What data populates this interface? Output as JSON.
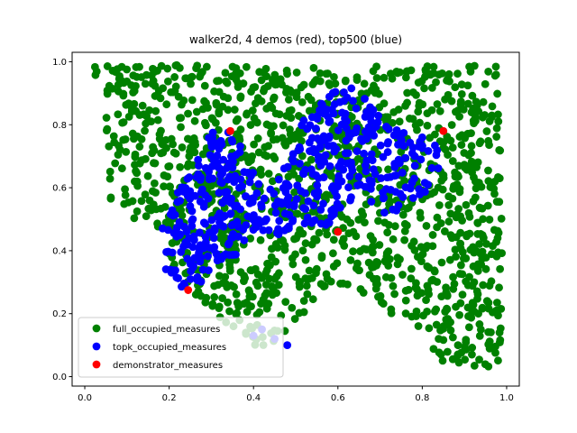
{
  "chart_data": {
    "type": "scatter",
    "title": "walker2d, 4 demos (red), top500 (blue)",
    "xlabel": "",
    "ylabel": "",
    "xlim": [
      -0.03,
      1.03
    ],
    "ylim": [
      -0.03,
      1.03
    ],
    "xticks": [
      "0.0",
      "0.2",
      "0.4",
      "0.6",
      "0.8",
      "1.0"
    ],
    "yticks": [
      "0.0",
      "0.2",
      "0.4",
      "0.6",
      "0.8",
      "1.0"
    ],
    "grid": false,
    "legend": {
      "placement": "lower-left"
    },
    "series": [
      {
        "name": "full_occupied_measures",
        "color": "#008000",
        "generated_count": 1400,
        "region_polygon": [
          [
            0.02,
            0.99
          ],
          [
            0.3,
            0.99
          ],
          [
            0.5,
            0.98
          ],
          [
            0.75,
            0.99
          ],
          [
            0.98,
            0.99
          ],
          [
            0.99,
            0.6
          ],
          [
            0.99,
            0.03
          ],
          [
            0.85,
            0.03
          ],
          [
            0.8,
            0.15
          ],
          [
            0.7,
            0.22
          ],
          [
            0.6,
            0.3
          ],
          [
            0.5,
            0.18
          ],
          [
            0.46,
            0.1
          ],
          [
            0.4,
            0.1
          ],
          [
            0.35,
            0.16
          ],
          [
            0.3,
            0.2
          ],
          [
            0.25,
            0.27
          ],
          [
            0.2,
            0.35
          ],
          [
            0.2,
            0.45
          ],
          [
            0.15,
            0.48
          ],
          [
            0.1,
            0.5
          ],
          [
            0.06,
            0.52
          ],
          [
            0.05,
            0.8
          ],
          [
            0.02,
            0.99
          ]
        ]
      },
      {
        "name": "topk_occupied_measures",
        "color": "#0000ff",
        "generated_count": 500,
        "region_polygon": [
          [
            0.18,
            0.5
          ],
          [
            0.25,
            0.68
          ],
          [
            0.3,
            0.78
          ],
          [
            0.36,
            0.8
          ],
          [
            0.38,
            0.68
          ],
          [
            0.45,
            0.6
          ],
          [
            0.52,
            0.82
          ],
          [
            0.6,
            0.92
          ],
          [
            0.66,
            0.92
          ],
          [
            0.72,
            0.8
          ],
          [
            0.82,
            0.75
          ],
          [
            0.86,
            0.7
          ],
          [
            0.82,
            0.6
          ],
          [
            0.75,
            0.52
          ],
          [
            0.7,
            0.52
          ],
          [
            0.62,
            0.55
          ],
          [
            0.6,
            0.47
          ],
          [
            0.5,
            0.48
          ],
          [
            0.42,
            0.42
          ],
          [
            0.35,
            0.38
          ],
          [
            0.28,
            0.3
          ],
          [
            0.24,
            0.28
          ],
          [
            0.2,
            0.3
          ],
          [
            0.18,
            0.4
          ],
          [
            0.18,
            0.5
          ]
        ],
        "extra_points": [
          [
            0.45,
            0.12
          ],
          [
            0.42,
            0.15
          ],
          [
            0.4,
            0.13
          ],
          [
            0.48,
            0.1
          ]
        ]
      },
      {
        "name": "demonstrator_measures",
        "color": "#ff0000",
        "points": [
          [
            0.345,
            0.78
          ],
          [
            0.6,
            0.46
          ],
          [
            0.85,
            0.78
          ],
          [
            0.245,
            0.275
          ]
        ]
      }
    ]
  }
}
